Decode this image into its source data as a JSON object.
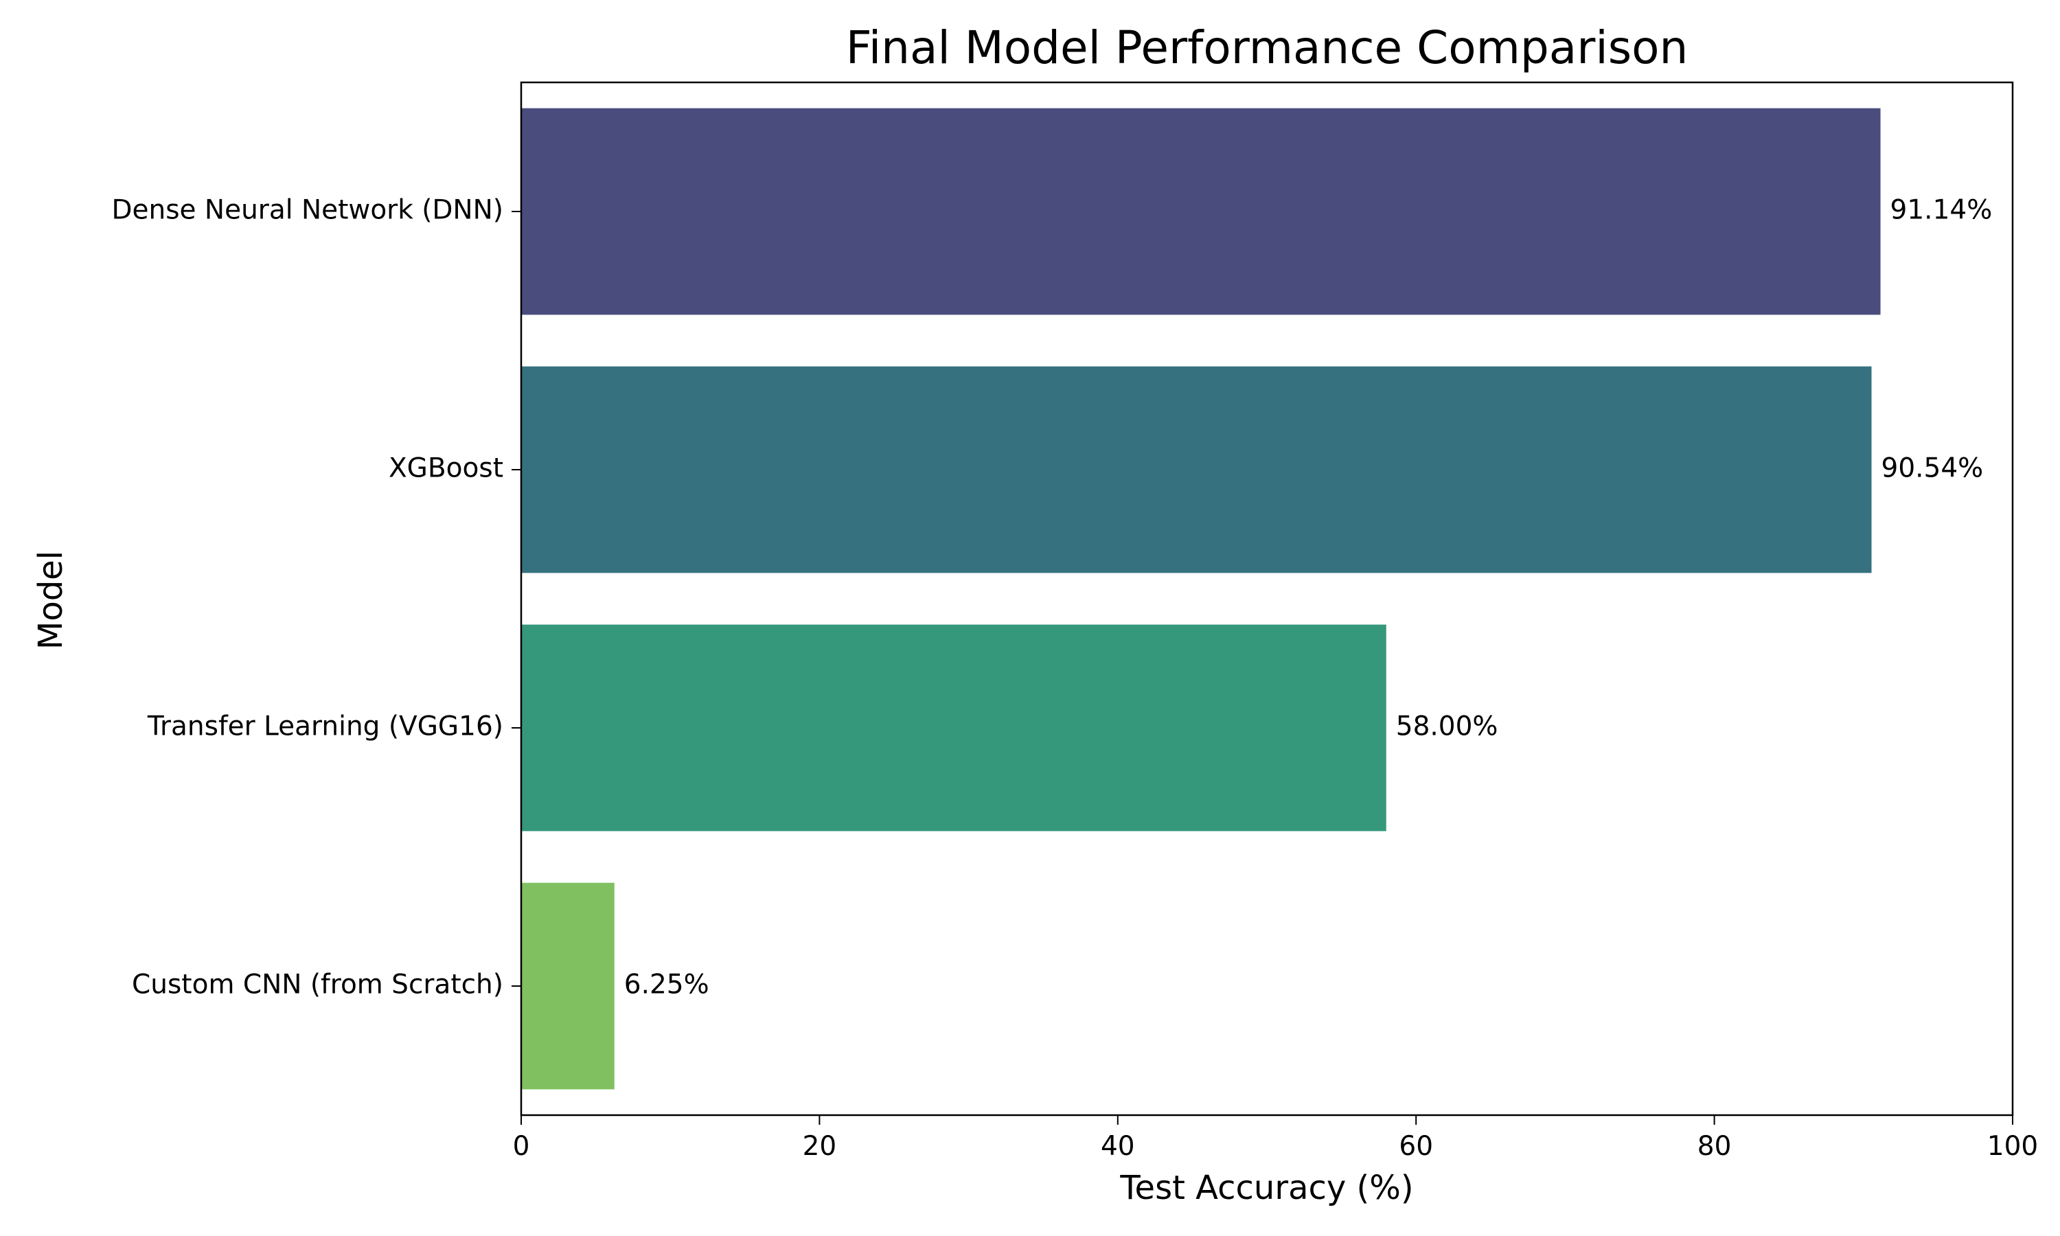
{
  "chart_data": {
    "type": "bar",
    "orientation": "horizontal",
    "title": "Final Model Performance Comparison",
    "xlabel": "Test Accuracy (%)",
    "ylabel": "Model",
    "xlim": [
      0,
      100
    ],
    "xticks": [
      0,
      20,
      40,
      60,
      80,
      100
    ],
    "grid": false,
    "legend": "none",
    "categories": [
      "Dense Neural Network (DNN)",
      "XGBoost",
      "Transfer Learning (VGG16)",
      "Custom CNN (from Scratch)"
    ],
    "values": [
      91.14,
      90.54,
      58.0,
      6.25
    ],
    "value_labels": [
      "91.14%",
      "90.54%",
      "58.00%",
      "6.25%"
    ],
    "colors": [
      "#4a4c7e",
      "#36717f",
      "#35987b",
      "#80c060"
    ]
  }
}
